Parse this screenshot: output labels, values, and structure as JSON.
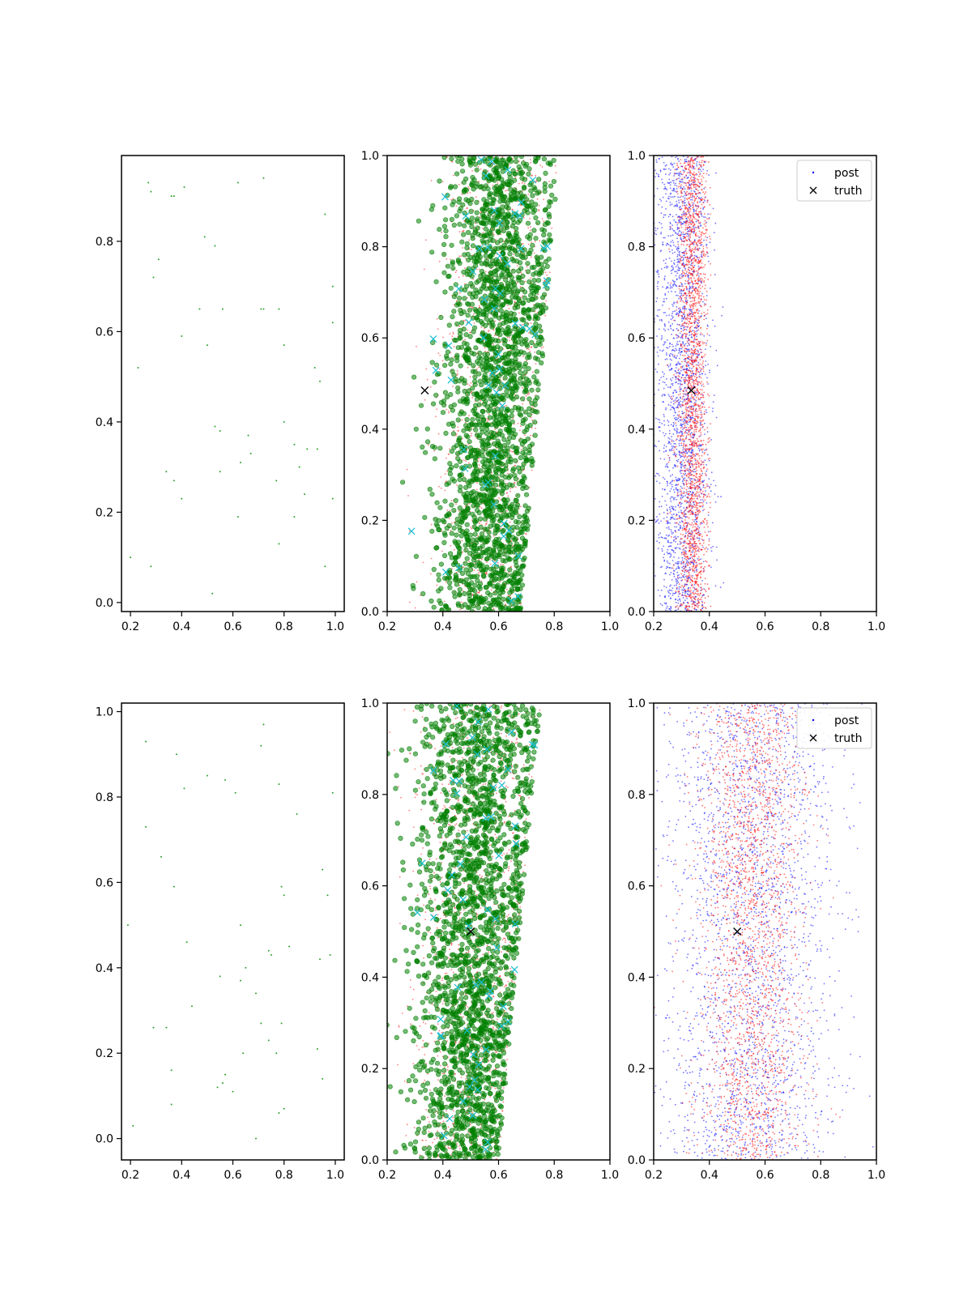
{
  "chart_data": [
    {
      "type": "scatter",
      "row": 0,
      "col": 0,
      "title": "",
      "xlabel": "",
      "ylabel": "",
      "xlim": [
        0.165,
        1.035
      ],
      "ylim": [
        -0.02,
        0.99
      ],
      "xticks": [
        "0.2",
        "0.4",
        "0.6",
        "0.8",
        "1.0"
      ],
      "yticks": [
        "0.0",
        "0.2",
        "0.4",
        "0.6",
        "0.8"
      ],
      "series": [
        {
          "color": "#2ca02c",
          "marker": "dot",
          "x": [
            0.27,
            0.28,
            0.36,
            0.37,
            0.41,
            0.62,
            0.72,
            0.96,
            0.49,
            0.53,
            0.31,
            0.29,
            0.99,
            0.47,
            0.56,
            0.71,
            0.72,
            0.78,
            0.4,
            0.8,
            0.99,
            0.5,
            0.23,
            0.92,
            0.94,
            0.53,
            0.55,
            0.66,
            0.8,
            0.67,
            0.84,
            0.89,
            0.93,
            0.86,
            0.34,
            0.63,
            0.37,
            0.55,
            0.77,
            0.4,
            0.88,
            0.84,
            0.99,
            0.62,
            0.78,
            0.2,
            0.28,
            0.96,
            0.52
          ],
          "y": [
            0.93,
            0.91,
            0.9,
            0.9,
            0.92,
            0.93,
            0.94,
            0.86,
            0.81,
            0.79,
            0.76,
            0.72,
            0.7,
            0.65,
            0.65,
            0.65,
            0.65,
            0.65,
            0.59,
            0.57,
            0.62,
            0.57,
            0.52,
            0.52,
            0.49,
            0.39,
            0.38,
            0.37,
            0.4,
            0.33,
            0.35,
            0.34,
            0.34,
            0.3,
            0.29,
            0.31,
            0.27,
            0.29,
            0.27,
            0.23,
            0.24,
            0.19,
            0.23,
            0.19,
            0.13,
            0.1,
            0.08,
            0.08,
            0.02
          ]
        }
      ]
    },
    {
      "type": "scatter",
      "row": 0,
      "col": 1,
      "title": "",
      "xlabel": "",
      "ylabel": "",
      "xlim": [
        0.2,
        1.0
      ],
      "ylim": [
        0.0,
        1.0
      ],
      "xticks": [
        "0.2",
        "0.4",
        "0.6",
        "0.8",
        "1.0"
      ],
      "yticks": [
        "0.0",
        "0.2",
        "0.4",
        "0.6",
        "0.8",
        "1.0"
      ],
      "distribution": {
        "x_center_bottom": 0.55,
        "x_center_top": 0.62,
        "width_bottom": 0.14,
        "width_top": 0.14,
        "right_edge_bottom": 0.68,
        "right_edge_top": 0.82
      },
      "series": [
        {
          "color": "#ff0000",
          "marker": "dot",
          "count": 1400,
          "alpha": 0.5
        },
        {
          "color": "#008000",
          "marker": "circle",
          "count": 2200,
          "alpha": 0.55
        },
        {
          "color": "#17becf",
          "marker": "x",
          "count": 60
        },
        {
          "color": "#000000",
          "marker": "x",
          "x": [
            0.335
          ],
          "y": [
            0.485
          ]
        }
      ]
    },
    {
      "type": "scatter",
      "row": 0,
      "col": 2,
      "title": "",
      "xlabel": "",
      "ylabel": "",
      "xlim": [
        0.2,
        1.0
      ],
      "ylim": [
        0.0,
        1.0
      ],
      "xticks": [
        "0.2",
        "0.4",
        "0.6",
        "0.8",
        "1.0"
      ],
      "yticks": [
        "0.0",
        "0.2",
        "0.4",
        "0.6",
        "0.8",
        "1.0"
      ],
      "legend": {
        "placement": "top-right",
        "entries": [
          "post",
          "truth"
        ]
      },
      "series": [
        {
          "name": "post",
          "color": "#0000ff",
          "marker": "dot",
          "count": 2200,
          "x_center": 0.3,
          "x_spread": 0.09
        },
        {
          "color": "#ff0000",
          "marker": "dot",
          "count": 2200,
          "x_center": 0.34,
          "x_spread": 0.05
        },
        {
          "name": "truth",
          "color": "#000000",
          "marker": "x",
          "x": [
            0.335
          ],
          "y": [
            0.485
          ]
        }
      ]
    },
    {
      "type": "scatter",
      "row": 1,
      "col": 0,
      "title": "",
      "xlabel": "",
      "ylabel": "",
      "xlim": [
        0.165,
        1.035
      ],
      "ylim": [
        -0.05,
        1.02
      ],
      "xticks": [
        "0.2",
        "0.4",
        "0.6",
        "0.8",
        "1.0"
      ],
      "yticks": [
        "0.0",
        "0.2",
        "0.4",
        "0.6",
        "0.8",
        "1.0"
      ],
      "series": [
        {
          "color": "#2ca02c",
          "marker": "dot",
          "x": [
            0.26,
            0.72,
            0.71,
            0.38,
            0.5,
            0.57,
            0.78,
            0.41,
            0.61,
            0.99,
            0.85,
            0.26,
            0.32,
            0.95,
            0.37,
            0.79,
            0.97,
            0.8,
            0.19,
            0.63,
            0.42,
            0.74,
            0.82,
            0.75,
            0.94,
            0.98,
            0.55,
            0.65,
            0.63,
            0.69,
            0.44,
            0.29,
            0.34,
            0.71,
            0.79,
            0.74,
            0.77,
            0.64,
            0.93,
            0.36,
            0.57,
            0.54,
            0.56,
            0.95,
            0.6,
            0.36,
            0.21,
            0.78,
            0.8,
            0.69
          ],
          "y": [
            0.93,
            0.97,
            0.92,
            0.9,
            0.85,
            0.84,
            0.83,
            0.82,
            0.81,
            0.81,
            0.76,
            0.73,
            0.66,
            0.63,
            0.59,
            0.59,
            0.57,
            0.57,
            0.5,
            0.5,
            0.46,
            0.44,
            0.45,
            0.43,
            0.42,
            0.43,
            0.38,
            0.4,
            0.37,
            0.34,
            0.31,
            0.26,
            0.26,
            0.27,
            0.27,
            0.23,
            0.2,
            0.2,
            0.21,
            0.16,
            0.15,
            0.12,
            0.13,
            0.14,
            0.11,
            0.08,
            0.03,
            0.06,
            0.07,
            0.0
          ]
        }
      ]
    },
    {
      "type": "scatter",
      "row": 1,
      "col": 1,
      "title": "",
      "xlabel": "",
      "ylabel": "",
      "xlim": [
        0.2,
        1.0
      ],
      "ylim": [
        0.0,
        1.0
      ],
      "xticks": [
        "0.2",
        "0.4",
        "0.6",
        "0.8",
        "1.0"
      ],
      "yticks": [
        "0.0",
        "0.2",
        "0.4",
        "0.6",
        "0.8",
        "1.0"
      ],
      "distribution": {
        "x_center_bottom": 0.48,
        "x_center_top": 0.55,
        "width_bottom": 0.13,
        "width_top": 0.17,
        "right_edge_bottom": 0.6,
        "right_edge_top": 0.75
      },
      "series": [
        {
          "color": "#ff0000",
          "marker": "dot",
          "count": 1400,
          "alpha": 0.5
        },
        {
          "color": "#008000",
          "marker": "circle",
          "count": 2200,
          "alpha": 0.55
        },
        {
          "color": "#17becf",
          "marker": "x",
          "count": 60
        },
        {
          "color": "#000000",
          "marker": "x",
          "x": [
            0.5
          ],
          "y": [
            0.5
          ]
        }
      ]
    },
    {
      "type": "scatter",
      "row": 1,
      "col": 2,
      "title": "",
      "xlabel": "",
      "ylabel": "",
      "xlim": [
        0.2,
        1.0
      ],
      "ylim": [
        0.0,
        1.0
      ],
      "xticks": [
        "0.2",
        "0.4",
        "0.6",
        "0.8",
        "1.0"
      ],
      "yticks": [
        "0.0",
        "0.2",
        "0.4",
        "0.6",
        "0.8",
        "1.0"
      ],
      "legend": {
        "placement": "top-right",
        "entries": [
          "post",
          "truth"
        ]
      },
      "series": [
        {
          "name": "post",
          "color": "#0000ff",
          "marker": "dot",
          "count": 2400,
          "x_center": 0.55,
          "x_spread": 0.28
        },
        {
          "color": "#ff0000",
          "marker": "dot",
          "count": 2200,
          "x_center": 0.55,
          "x_spread": 0.17
        },
        {
          "name": "truth",
          "color": "#000000",
          "marker": "x",
          "x": [
            0.5
          ],
          "y": [
            0.5
          ]
        }
      ]
    }
  ]
}
